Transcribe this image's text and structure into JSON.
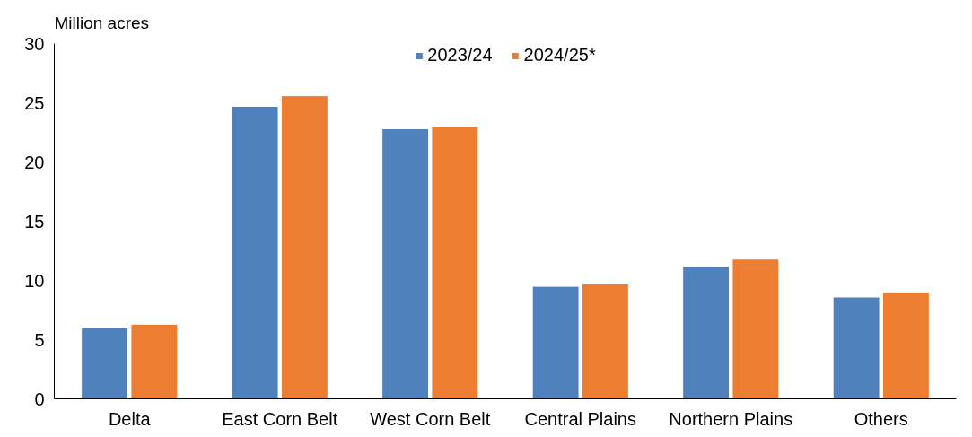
{
  "chart_data": {
    "type": "bar",
    "ylabel": "Million acres",
    "categories": [
      "Delta",
      "East Corn Belt",
      "West Corn Belt",
      "Central Plains",
      "Northern Plains",
      "Others"
    ],
    "series": [
      {
        "name": "2023/24",
        "color": "#4f81bd",
        "values": [
          6.0,
          24.7,
          22.8,
          9.5,
          11.2,
          8.6
        ]
      },
      {
        "name": "2024/25*",
        "color": "#ed7d31",
        "values": [
          6.3,
          25.6,
          23.0,
          9.7,
          11.8,
          9.0
        ]
      }
    ],
    "ylim": [
      0,
      30
    ],
    "yticks": [
      0,
      5,
      10,
      15,
      20,
      25,
      30
    ],
    "grid": false,
    "legend": "top"
  }
}
